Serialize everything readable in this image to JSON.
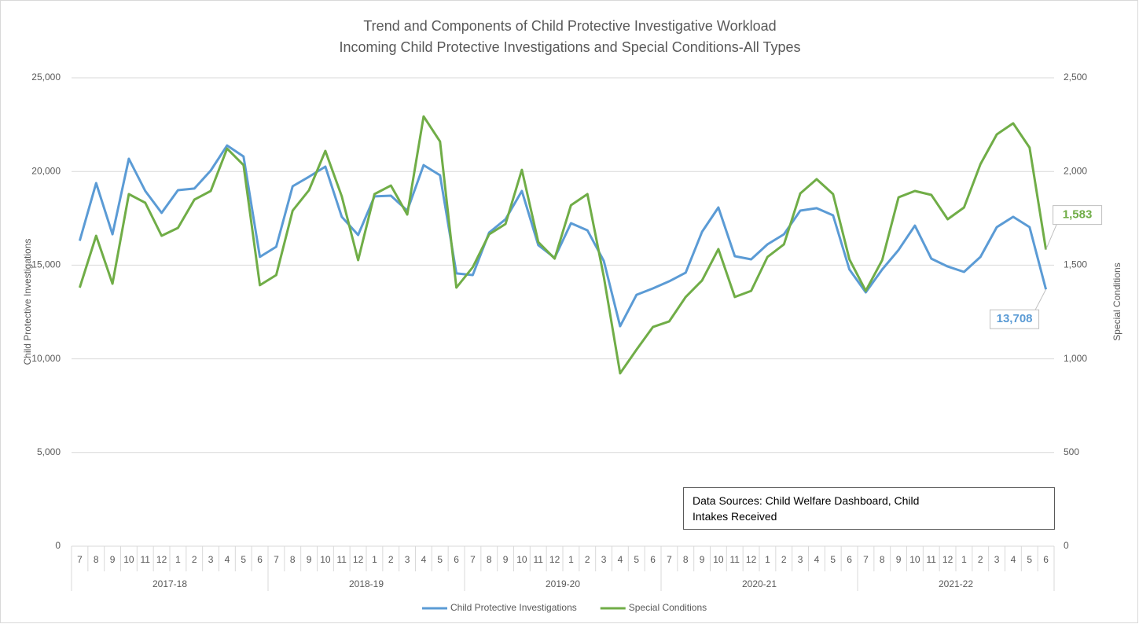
{
  "chart_data": {
    "type": "line",
    "title": "Trend and Components of Child Protective Investigative Workload",
    "subtitle": "Incoming Child Protective Investigations and Special Conditions-All Types",
    "ylabel": "Child Protective Investigations",
    "y2label": "Special Conditions",
    "annotation": "Data Sources: Child Welfare Dashboard, Child Intakes Received",
    "categories": [
      "7",
      "8",
      "9",
      "10",
      "11",
      "12",
      "1",
      "2",
      "3",
      "4",
      "5",
      "6",
      "7",
      "8",
      "9",
      "10",
      "11",
      "12",
      "1",
      "2",
      "3",
      "4",
      "5",
      "6",
      "7",
      "8",
      "9",
      "10",
      "11",
      "12",
      "1",
      "2",
      "3",
      "4",
      "5",
      "6",
      "7",
      "8",
      "9",
      "10",
      "11",
      "12",
      "1",
      "2",
      "3",
      "4",
      "5",
      "6",
      "7",
      "8",
      "9",
      "10",
      "11",
      "12",
      "1",
      "2",
      "3",
      "4",
      "5",
      "6"
    ],
    "groups": [
      "2017-18",
      "2018-19",
      "2019-20",
      "2020-21",
      "2021-22"
    ],
    "ylim": [
      0,
      25000
    ],
    "yticks": [
      0,
      {
        "value": 5000,
        "label": "5,000"
      },
      {
        "value": 10000,
        "label": "10,000"
      },
      {
        "value": 15000,
        "label": "15,000"
      },
      {
        "value": 20000,
        "label": "20,000"
      },
      {
        "value": 25000,
        "label": "25,000"
      }
    ],
    "y2lim": [
      0,
      2500
    ],
    "y2ticks": [
      0,
      500,
      {
        "value": 1000,
        "label": "1,000"
      },
      {
        "value": 1500,
        "label": "1,500"
      },
      {
        "value": 2000,
        "label": "2,000"
      },
      {
        "value": 2500,
        "label": "2,500"
      }
    ],
    "grid": true,
    "legend": "bottom",
    "series": [
      {
        "name": "Child Protective Investigations",
        "color": "#5b9bd5",
        "values": [
          16300,
          19380,
          16650,
          20680,
          18960,
          17790,
          19000,
          19090,
          20050,
          21390,
          20800,
          15440,
          15980,
          19210,
          19720,
          20260,
          17580,
          16610,
          18670,
          18710,
          17910,
          20340,
          19800,
          14560,
          14470,
          16740,
          17450,
          18960,
          16070,
          15390,
          17240,
          16860,
          15230,
          11740,
          13420,
          13760,
          14140,
          14600,
          16780,
          18080,
          15480,
          15310,
          16110,
          16650,
          17910,
          18040,
          17660,
          14770,
          13550,
          14770,
          15810,
          17110,
          15350,
          14930,
          14640,
          15440,
          17030,
          17580,
          17030,
          13708
        ],
        "value_labels": [
          null,
          null,
          null,
          null,
          null,
          null,
          null,
          null,
          null,
          null,
          null,
          null,
          null,
          null,
          null,
          null,
          null,
          null,
          null,
          null,
          null,
          null,
          null,
          null,
          null,
          null,
          null,
          null,
          null,
          null,
          null,
          null,
          null,
          null,
          null,
          null,
          null,
          null,
          null,
          null,
          null,
          null,
          null,
          null,
          null,
          null,
          null,
          null,
          null,
          null,
          null,
          null,
          null,
          null,
          null,
          null,
          null,
          null,
          null,
          "13,708"
        ]
      },
      {
        "name": "Special Conditions",
        "color": "#70ad47",
        "axis": "y2",
        "values": [
          1380,
          1657,
          1401,
          1879,
          1833,
          1657,
          1699,
          1850,
          1896,
          2122,
          2034,
          1393,
          1447,
          1791,
          1900,
          2110,
          1867,
          1527,
          1879,
          1925,
          1770,
          2294,
          2160,
          1380,
          1489,
          1665,
          1720,
          2009,
          1623,
          1535,
          1820,
          1879,
          1439,
          923,
          1049,
          1170,
          1200,
          1330,
          1418,
          1586,
          1330,
          1363,
          1544,
          1611,
          1883,
          1959,
          1879,
          1531,
          1363,
          1527,
          1862,
          1896,
          1875,
          1745,
          1808,
          2039,
          2198,
          2257,
          2127,
          1583
        ],
        "value_labels": [
          null,
          null,
          null,
          null,
          null,
          null,
          null,
          null,
          null,
          null,
          null,
          null,
          null,
          null,
          null,
          null,
          null,
          null,
          null,
          null,
          null,
          null,
          null,
          null,
          null,
          null,
          null,
          null,
          null,
          null,
          null,
          null,
          null,
          null,
          null,
          null,
          null,
          null,
          null,
          null,
          null,
          null,
          null,
          null,
          null,
          null,
          null,
          null,
          null,
          null,
          null,
          null,
          null,
          null,
          null,
          null,
          null,
          null,
          null,
          "1,583"
        ]
      }
    ]
  }
}
